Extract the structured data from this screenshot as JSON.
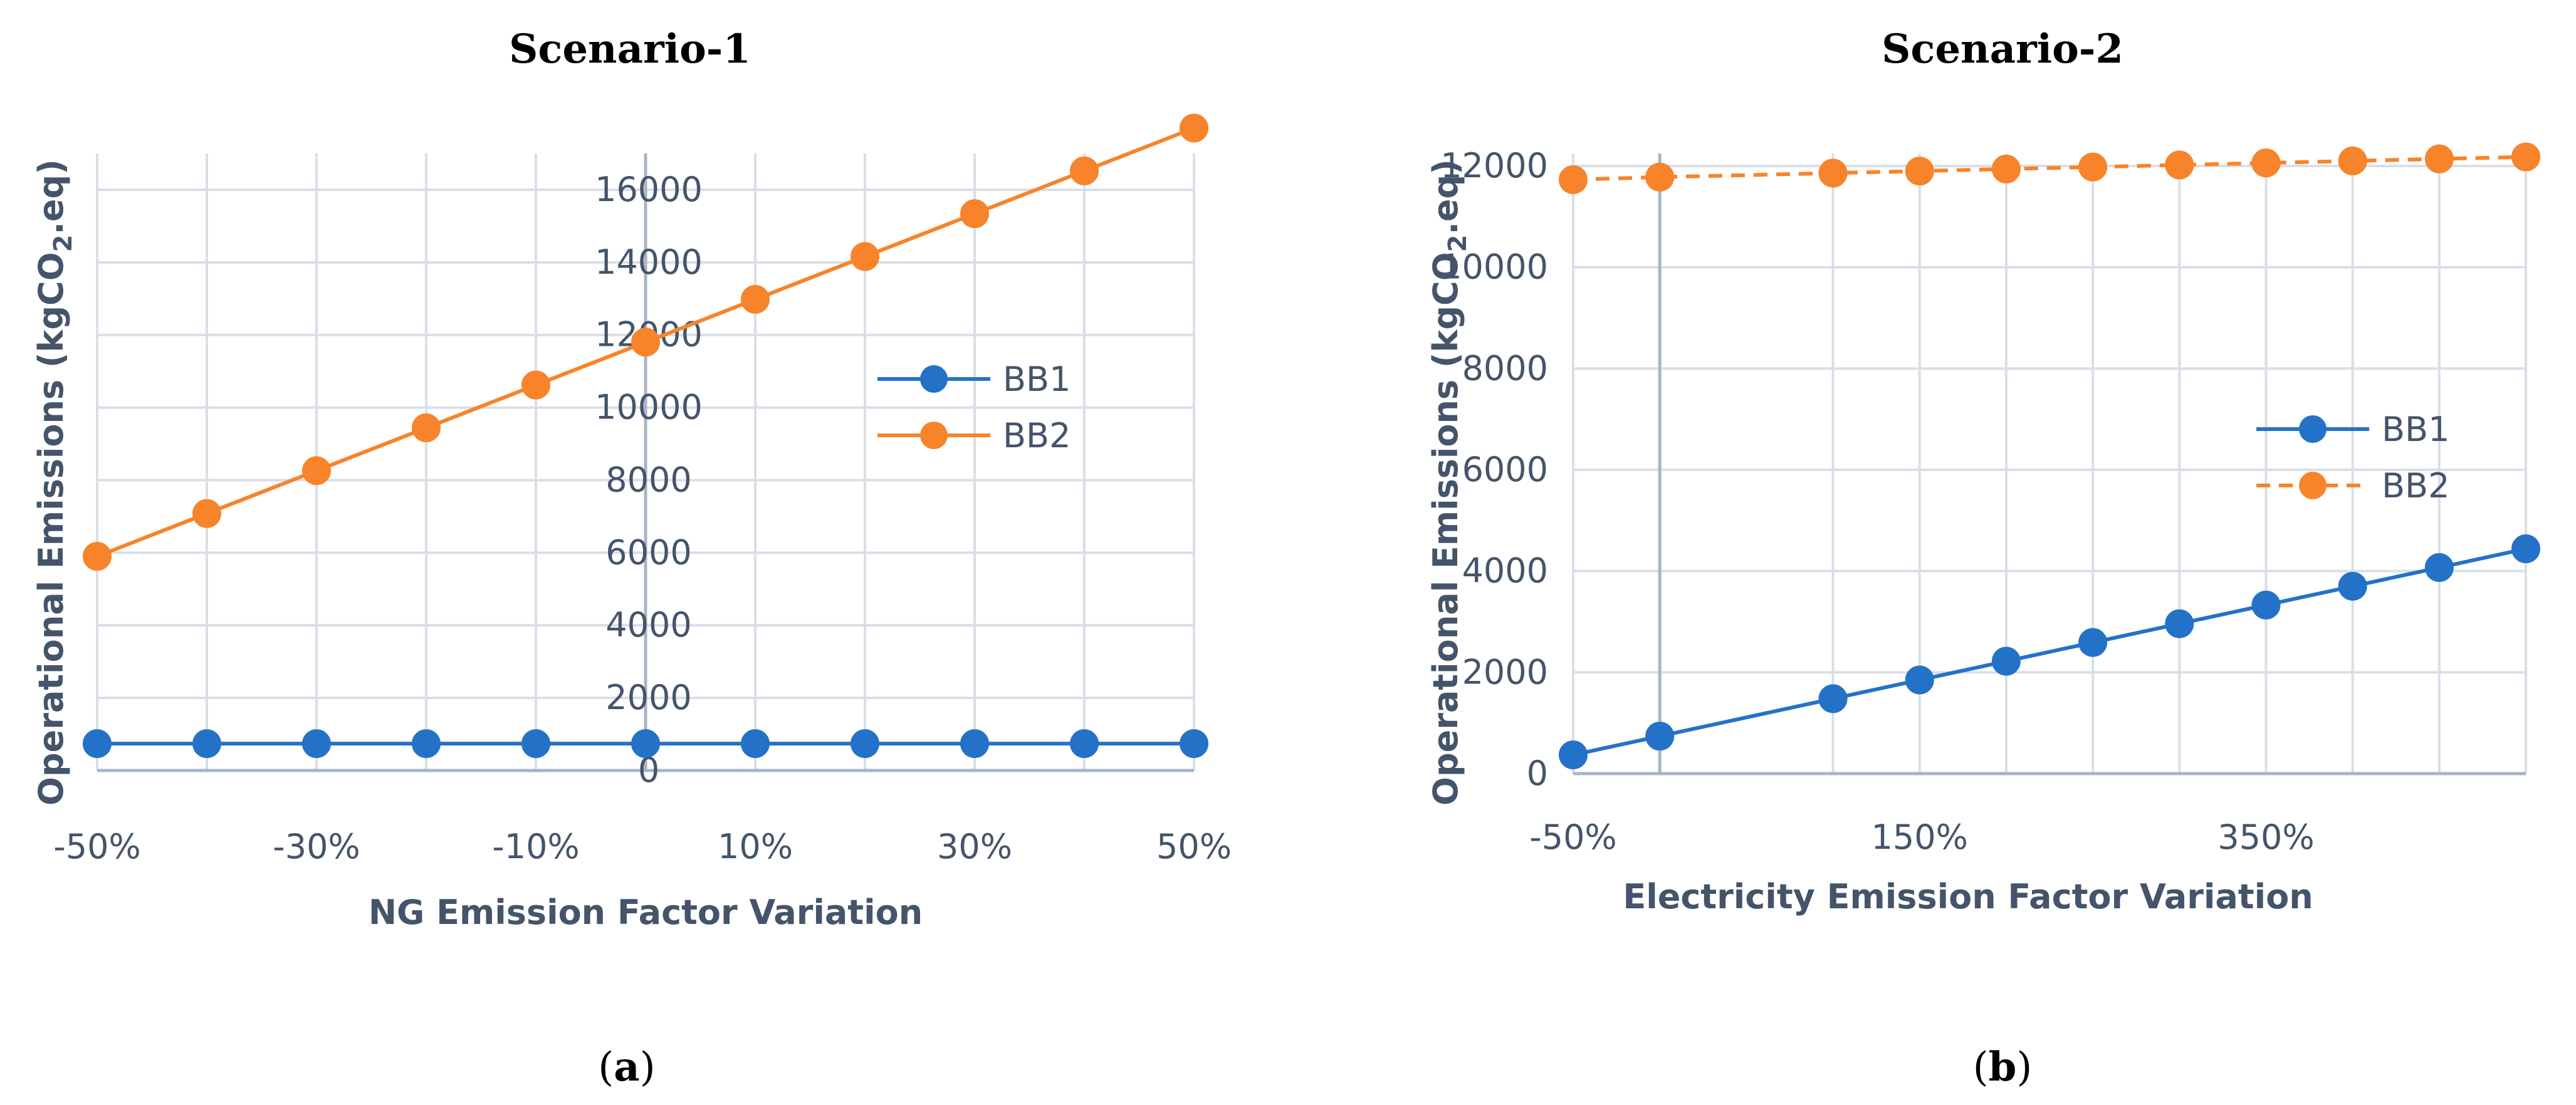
{
  "colors": {
    "bb1": "#2472c8",
    "bb2": "#f7842a",
    "grid": "#d9dee7",
    "axis": "#a6b4c8",
    "text": "#44546a"
  },
  "chart_data": [
    {
      "type": "line",
      "panel_label": "(a)",
      "panel_letter": "a",
      "title": "Scenario-1",
      "xlabel": "NG Emission Factor Variation",
      "ylabel": "Operational Emissions (kgCO2.eq)",
      "x": [
        -50,
        -40,
        -30,
        -20,
        -10,
        0,
        10,
        20,
        30,
        40,
        50
      ],
      "xlim": [
        -50,
        50
      ],
      "x_tick_labels": [
        "-50%",
        "-30%",
        "-10%",
        "10%",
        "30%",
        "50%"
      ],
      "ylim": [
        0,
        17000
      ],
      "y_ticks": [
        0,
        2000,
        4000,
        6000,
        8000,
        10000,
        12000,
        14000,
        16000
      ],
      "series": [
        {
          "name": "BB1",
          "values": [
            740,
            740,
            740,
            740,
            740,
            740,
            740,
            740,
            740,
            740,
            740
          ],
          "dashed": false
        },
        {
          "name": "BB2",
          "values": [
            5900,
            7080,
            8260,
            9440,
            10620,
            11800,
            12980,
            14160,
            15340,
            16520,
            17700
          ],
          "dashed": false
        }
      ],
      "legend_position": "right"
    },
    {
      "type": "line",
      "panel_label": "(b)",
      "panel_letter": "b",
      "title": "Scenario-2",
      "xlabel": "Electricity Emission Factor Variation",
      "ylabel": "Operational Emissions (kgCO2.eq)",
      "x": [
        -50,
        0,
        100,
        150,
        200,
        250,
        300,
        350,
        400,
        450,
        500
      ],
      "xlim": [
        -50,
        500
      ],
      "x_tick_labels": [
        "-50%",
        "150%",
        "350%"
      ],
      "ylim": [
        0,
        12000
      ],
      "y_ticks": [
        0,
        2000,
        4000,
        6000,
        8000,
        10000,
        12000
      ],
      "series": [
        {
          "name": "BB1",
          "values": [
            370,
            740,
            1480,
            1850,
            2220,
            2590,
            2960,
            3330,
            3700,
            4070,
            4440
          ],
          "dashed": false
        },
        {
          "name": "BB2",
          "values": [
            11730,
            11780,
            11860,
            11900,
            11940,
            11980,
            12020,
            12060,
            12100,
            12140,
            12180
          ],
          "dashed": true
        }
      ],
      "legend_position": "right"
    }
  ]
}
